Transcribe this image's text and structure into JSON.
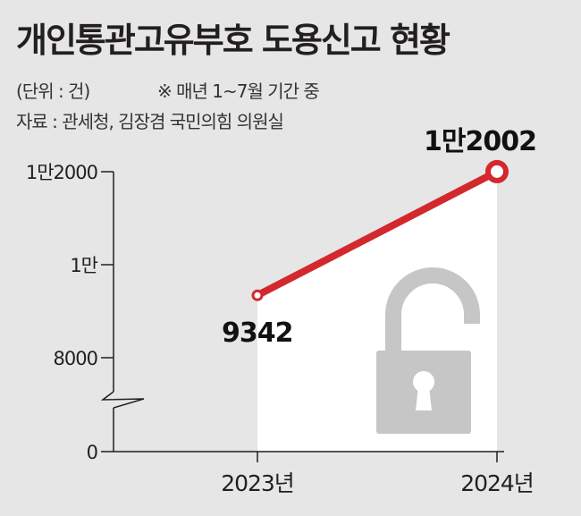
{
  "header": {
    "title": "개인통관고유부호 도용신고 현황",
    "unit": "(단위 : 건)",
    "note": "※ 매년 1~7월 기간 중",
    "source": "자료 : 관세청, 김장겸 국민의힘 의원실"
  },
  "colors": {
    "background": "#e6e6e6",
    "area": "#ffffff",
    "line": "#d3282d",
    "lock": "#c6c6c6",
    "axis": "#231f20"
  },
  "icon": "padlock-unlocked-icon",
  "chart_data": {
    "type": "line",
    "categories": [
      "2023년",
      "2024년"
    ],
    "series": [
      {
        "values": [
          9342,
          12002
        ],
        "labels": [
          "9342",
          "1만2002"
        ]
      }
    ],
    "y_ticks": [
      {
        "value": 0,
        "label": "0"
      },
      {
        "value": 8000,
        "label": "8000"
      },
      {
        "value": 10000,
        "label": "1만"
      },
      {
        "value": 12000,
        "label": "1만2000"
      }
    ],
    "axis_break": true,
    "grid": false,
    "legend": "none"
  }
}
